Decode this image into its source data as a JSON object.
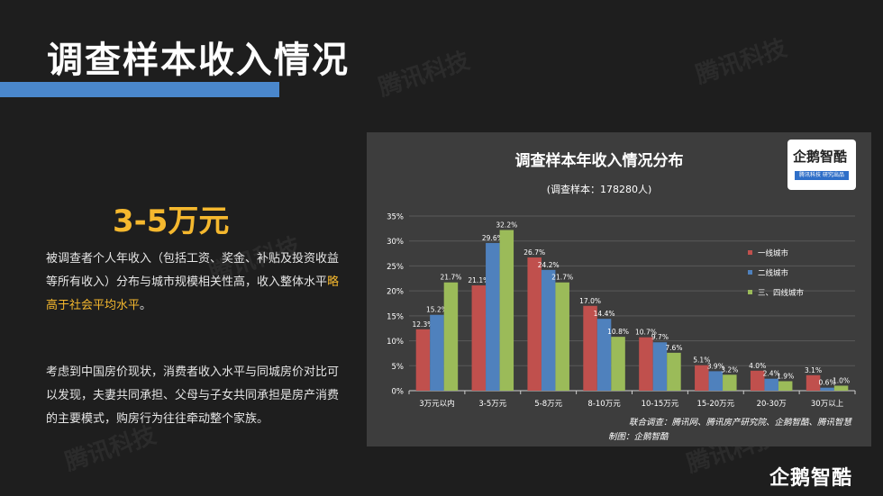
{
  "slide": {
    "title": "调查样本收入情况",
    "headline": "3-5万元",
    "para1_pre": "被调查者个人年收入（包括工资、奖金、补贴及投资收益等所有收入）分布与城市规模相关性高，收入整体水平",
    "para1_highlight": "略高于社会平均水平",
    "para1_post": "。",
    "para2": "考虑到中国房价现状，消费者收入水平与同城房价对比可以发现，夫妻共同承担、父母与子女共同承担是房产消费的主要模式，购房行为往往牵动整个家族。",
    "watermark": "腾讯科技",
    "footer_logo": "企鹅智酷"
  },
  "badge": {
    "title": "企鹅智酷",
    "subtitle": "腾讯科技 研究出品"
  },
  "chart_data": {
    "type": "bar",
    "title": "调查样本年收入情况分布",
    "subtitle": "(调查样本：178280人)",
    "categories": [
      "3万元以内",
      "3-5万元",
      "5-8万元",
      "8-10万元",
      "10-15万元",
      "15-20万元",
      "20-30万",
      "30万以上"
    ],
    "series": [
      {
        "name": "一线城市",
        "color": "#c0504d",
        "values": [
          12.3,
          21.1,
          26.7,
          17.0,
          10.7,
          5.1,
          4.0,
          3.1
        ]
      },
      {
        "name": "二线城市",
        "color": "#4f81bd",
        "values": [
          15.2,
          29.6,
          24.2,
          14.4,
          9.7,
          3.9,
          2.4,
          0.6
        ]
      },
      {
        "name": "三、四线城市",
        "color": "#9bbb59",
        "values": [
          21.7,
          32.2,
          21.7,
          10.8,
          7.6,
          3.2,
          1.9,
          1.0
        ]
      }
    ],
    "ylim": [
      0,
      35
    ],
    "yticks": [
      "0%",
      "5%",
      "10%",
      "15%",
      "20%",
      "25%",
      "30%",
      "35%"
    ],
    "grid": true,
    "legend_position": "right",
    "source_line1": "联合调查：腾讯网、腾讯房产研究院、企鹅智酷、腾讯智慧",
    "source_line2": "制图：企鹅智酷"
  }
}
